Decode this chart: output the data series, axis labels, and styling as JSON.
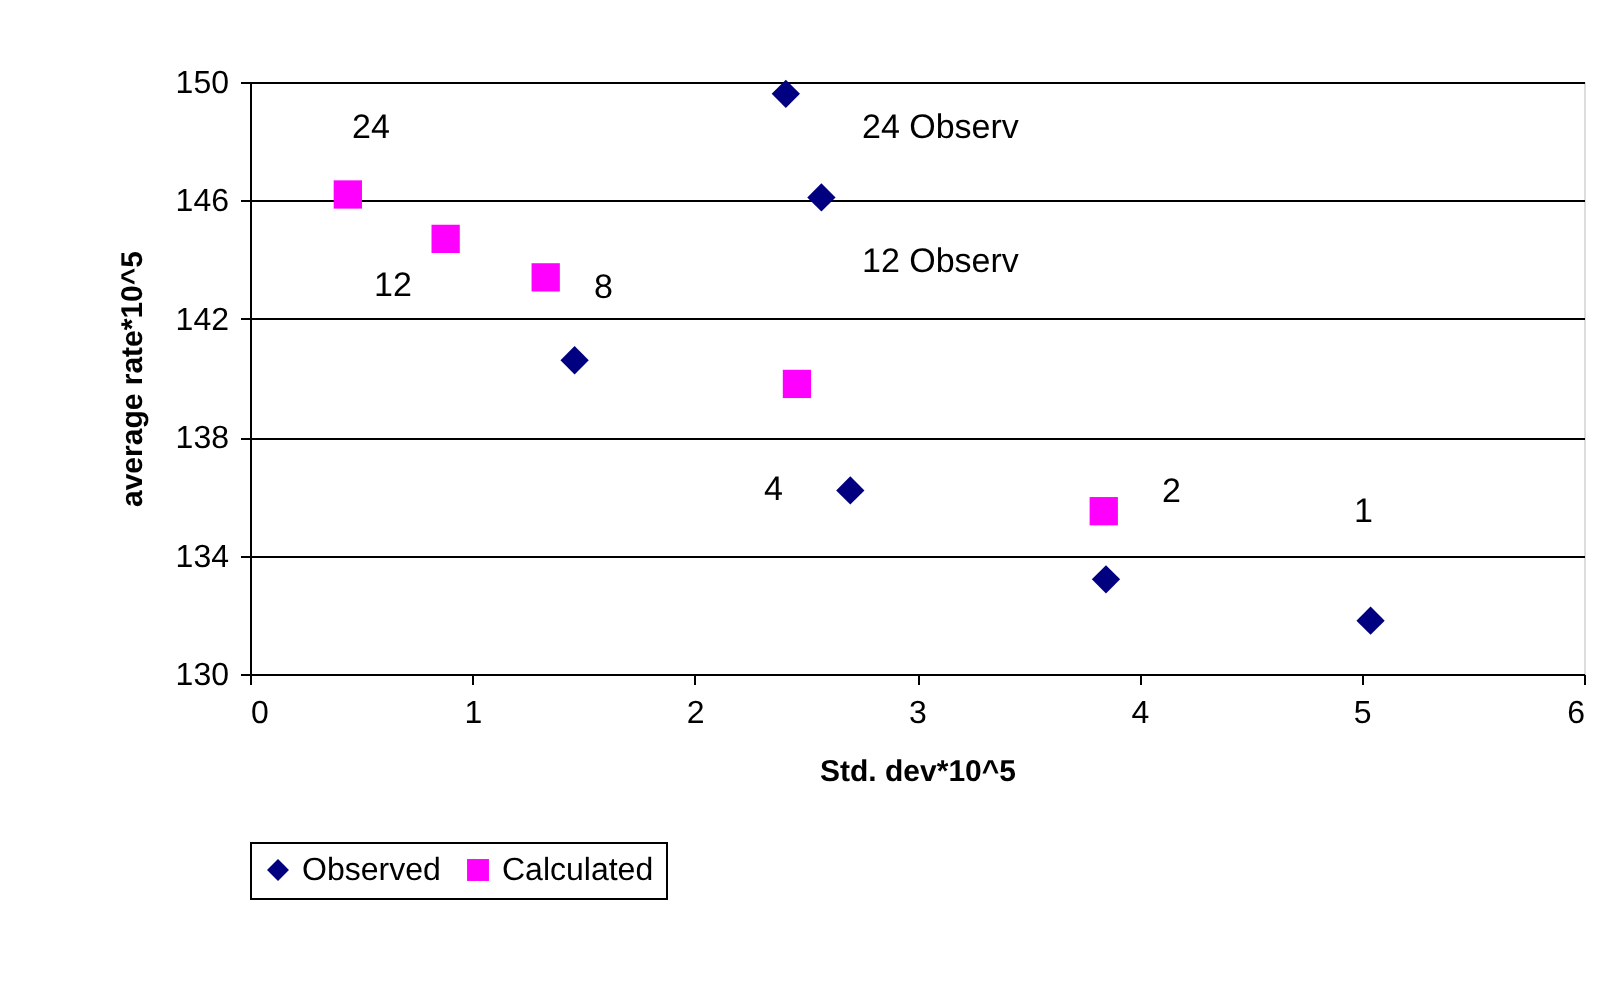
{
  "chart_data": {
    "type": "scatter",
    "xlabel": "Std. dev*10^5",
    "ylabel": "average rate*10^5",
    "xlim": [
      0,
      6
    ],
    "xticks": [
      0,
      1,
      2,
      3,
      4,
      5,
      6
    ],
    "ylim": [
      130,
      150
    ],
    "yticks": [
      130,
      134,
      138,
      142,
      146,
      150
    ],
    "grid": "y",
    "legend": "bottom",
    "series": [
      {
        "name": "Observed",
        "color": "#000080",
        "marker": "diamond",
        "x": [
          2.41,
          2.57,
          1.46,
          2.7,
          3.85,
          5.04
        ],
        "values": [
          149.6,
          146.1,
          140.6,
          136.2,
          133.2,
          131.8
        ]
      },
      {
        "name": "Calculated",
        "color": "#ff00ff",
        "marker": "square",
        "x": [
          0.44,
          0.88,
          1.33,
          2.46,
          3.84
        ],
        "values": [
          146.2,
          144.7,
          143.4,
          139.8,
          135.5
        ]
      }
    ],
    "annotations": [
      "24",
      "12",
      "8",
      "24 Observ",
      "12 Observ",
      "4",
      "2",
      "1"
    ]
  }
}
